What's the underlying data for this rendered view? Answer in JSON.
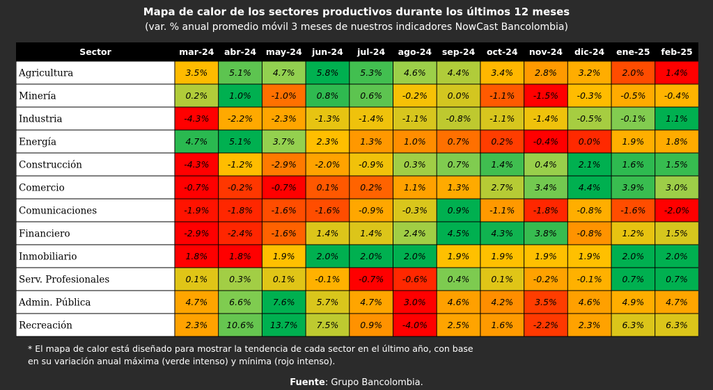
{
  "header": {
    "title": "Mapa de calor de los sectores productivos durante los últimos 12 meses",
    "subtitle": "(var. % anual promedio móvil 3 meses de nuestros indicadores NowCast Bancolombia)"
  },
  "chart_data": {
    "type": "heatmap",
    "corner_label": "Sector",
    "columns": [
      "mar-24",
      "abr-24",
      "may-24",
      "jun-24",
      "jul-24",
      "ago-24",
      "sep-24",
      "oct-24",
      "nov-24",
      "dic-24",
      "ene-25",
      "feb-25"
    ],
    "rows": [
      {
        "sector": "Agricultura",
        "values": [
          3.5,
          5.1,
          4.7,
          5.8,
          5.3,
          4.6,
          4.4,
          3.4,
          2.8,
          3.2,
          2.0,
          1.4
        ],
        "labels": [
          "3.5%",
          "5.1%",
          "4.7%",
          "5.8%",
          "5.3%",
          "4.6%",
          "4.4%",
          "3.4%",
          "2.8%",
          "3.2%",
          "2.0%",
          "1.4%"
        ]
      },
      {
        "sector": "Minería",
        "values": [
          0.2,
          1.0,
          -1.0,
          0.8,
          0.6,
          -0.2,
          0.0,
          -1.1,
          -1.5,
          -0.3,
          -0.5,
          -0.4
        ],
        "labels": [
          "0.2%",
          "1.0%",
          "-1.0%",
          "0.8%",
          "0.6%",
          "-0.2%",
          "0.0%",
          "-1.1%",
          "-1.5%",
          "-0.3%",
          "-0.5%",
          "-0.4%"
        ]
      },
      {
        "sector": "Industria",
        "values": [
          -4.3,
          -2.2,
          -2.3,
          -1.3,
          -1.4,
          -1.1,
          -0.8,
          -1.1,
          -1.4,
          -0.5,
          -0.1,
          1.1
        ],
        "labels": [
          "-4.3%",
          "-2.2%",
          "-2.3%",
          "-1.3%",
          "-1.4%",
          "-1.1%",
          "-0.8%",
          "-1.1%",
          "-1.4%",
          "-0.5%",
          "-0.1%",
          "1.1%"
        ]
      },
      {
        "sector": "Energía",
        "values": [
          4.7,
          5.1,
          3.7,
          2.3,
          1.3,
          1.0,
          0.7,
          0.2,
          -0.4,
          0.0,
          1.9,
          1.8
        ],
        "labels": [
          "4.7%",
          "5.1%",
          "3.7%",
          "2.3%",
          "1.3%",
          "1.0%",
          "0.7%",
          "0.2%",
          "-0.4%",
          "0.0%",
          "1.9%",
          "1.8%"
        ]
      },
      {
        "sector": "Construcción",
        "values": [
          -4.3,
          -1.2,
          -2.9,
          -2.0,
          -0.9,
          0.3,
          0.7,
          1.4,
          0.4,
          2.1,
          1.6,
          1.5
        ],
        "labels": [
          "-4.3%",
          "-1.2%",
          "-2.9%",
          "-2.0%",
          "-0.9%",
          "0.3%",
          "0.7%",
          "1.4%",
          "0.4%",
          "2.1%",
          "1.6%",
          "1.5%"
        ]
      },
      {
        "sector": "Comercio",
        "values": [
          -0.7,
          -0.2,
          -0.7,
          0.1,
          0.2,
          1.1,
          1.3,
          2.7,
          3.4,
          4.4,
          3.9,
          3.0
        ],
        "labels": [
          "-0.7%",
          "-0.2%",
          "-0.7%",
          "0.1%",
          "0.2%",
          "1.1%",
          "1.3%",
          "2.7%",
          "3.4%",
          "4.4%",
          "3.9%",
          "3.0%"
        ]
      },
      {
        "sector": "Comunicaciones",
        "values": [
          -1.9,
          -1.8,
          -1.6,
          -1.6,
          -0.9,
          -0.3,
          0.9,
          -1.1,
          -1.8,
          -0.8,
          -1.6,
          -2.0
        ],
        "labels": [
          "-1.9%",
          "-1.8%",
          "-1.6%",
          "-1.6%",
          "-0.9%",
          "-0.3%",
          "0.9%",
          "-1.1%",
          "-1.8%",
          "-0.8%",
          "-1.6%",
          "-2.0%"
        ]
      },
      {
        "sector": "Financiero",
        "values": [
          -2.9,
          -2.4,
          -1.6,
          1.4,
          1.4,
          2.4,
          4.5,
          4.3,
          3.8,
          -0.8,
          1.2,
          1.5
        ],
        "labels": [
          "-2.9%",
          "-2.4%",
          "-1.6%",
          "1.4%",
          "1.4%",
          "2.4%",
          "4.5%",
          "4.3%",
          "3.8%",
          "-0.8%",
          "1.2%",
          "1.5%"
        ]
      },
      {
        "sector": "Inmobiliario",
        "values": [
          1.8,
          1.8,
          1.9,
          2.0,
          2.0,
          2.0,
          1.9,
          1.9,
          1.9,
          1.9,
          2.0,
          2.0
        ],
        "labels": [
          "1.8%",
          "1.8%",
          "1.9%",
          "2.0%",
          "2.0%",
          "2.0%",
          "1.9%",
          "1.9%",
          "1.9%",
          "1.9%",
          "2.0%",
          "2.0%"
        ]
      },
      {
        "sector": "Serv. Profesionales",
        "values": [
          0.1,
          0.3,
          0.1,
          -0.1,
          -0.7,
          -0.6,
          0.4,
          0.1,
          -0.2,
          -0.1,
          0.7,
          0.7
        ],
        "labels": [
          "0.1%",
          "0.3%",
          "0.1%",
          "-0.1%",
          "-0.7%",
          "-0.6%",
          "0.4%",
          "0.1%",
          "-0.2%",
          "-0.1%",
          "0.7%",
          "0.7%"
        ]
      },
      {
        "sector": "Admin. Pública",
        "values": [
          4.7,
          6.6,
          7.6,
          5.7,
          4.7,
          3.0,
          4.6,
          4.2,
          3.5,
          4.6,
          4.9,
          4.7
        ],
        "labels": [
          "4.7%",
          "6.6%",
          "7.6%",
          "5.7%",
          "4.7%",
          "3.0%",
          "4.6%",
          "4.2%",
          "3.5%",
          "4.6%",
          "4.9%",
          "4.7%"
        ]
      },
      {
        "sector": "Recreación",
        "values": [
          2.3,
          10.6,
          13.7,
          7.5,
          0.9,
          -4.0,
          2.5,
          1.6,
          -2.2,
          2.3,
          6.3,
          6.3
        ],
        "labels": [
          "2.3%",
          "10.6%",
          "13.7%",
          "7.5%",
          "0.9%",
          "-4.0%",
          "2.5%",
          "1.6%",
          "-2.2%",
          "2.3%",
          "6.3%",
          "6.3%"
        ]
      }
    ],
    "color_scale": [
      "#ff0000",
      "#ff8c00",
      "#ffc000",
      "#92d050",
      "#00b050"
    ],
    "header_bg": "#000000"
  },
  "footnote": {
    "line1": "* El mapa de calor está diseñado para mostrar la tendencia de cada sector en el último año, con base",
    "line2": "en su variación anual máxima (verde intenso) y mínima (rojo intenso)."
  },
  "source": {
    "label": "Fuente",
    "text": ": Grupo Bancolombia."
  }
}
